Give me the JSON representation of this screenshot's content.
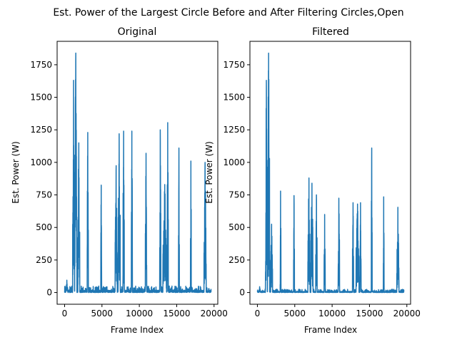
{
  "figure": {
    "suptitle": "Est. Power of the Largest Circle Before and After Filtering Circles,Open"
  },
  "chart_data": [
    {
      "type": "line",
      "title": "Original",
      "xlabel": "Frame Index",
      "ylabel": "Est. Power (W)",
      "xlim": [
        -1000,
        20500
      ],
      "ylim": [
        -90,
        1930
      ],
      "xticks": [
        0,
        5000,
        10000,
        15000,
        20000
      ],
      "xtick_labels": [
        "0",
        "5000",
        "10000",
        "15000",
        "20000"
      ],
      "yticks": [
        0,
        250,
        500,
        750,
        1000,
        1250,
        1500,
        1750
      ],
      "ytick_labels": [
        "0",
        "250",
        "500",
        "750",
        "1000",
        "1250",
        "1500",
        "1750"
      ],
      "grid": false,
      "series": [
        {
          "color": "#1f77b4",
          "baseline_range": [
            0,
            50
          ],
          "bursts": [
            {
              "x": 300,
              "peak": 95,
              "width": 250
            },
            {
              "x": 1200,
              "peak": 1630,
              "width": 250
            },
            {
              "x": 1500,
              "peak": 1840,
              "width": 300
            },
            {
              "x": 1900,
              "peak": 1150,
              "width": 250
            },
            {
              "x": 3100,
              "peak": 1230,
              "width": 150
            },
            {
              "x": 4900,
              "peak": 825,
              "width": 120
            },
            {
              "x": 6900,
              "peak": 975,
              "width": 300
            },
            {
              "x": 7300,
              "peak": 1220,
              "width": 300
            },
            {
              "x": 7900,
              "peak": 1240,
              "width": 200
            },
            {
              "x": 9000,
              "peak": 1240,
              "width": 150
            },
            {
              "x": 10900,
              "peak": 1070,
              "width": 200
            },
            {
              "x": 12800,
              "peak": 1250,
              "width": 150
            },
            {
              "x": 13400,
              "peak": 830,
              "width": 500
            },
            {
              "x": 13800,
              "peak": 1305,
              "width": 150
            },
            {
              "x": 15300,
              "peak": 1110,
              "width": 120
            },
            {
              "x": 16900,
              "peak": 1010,
              "width": 120
            },
            {
              "x": 18800,
              "peak": 1000,
              "width": 300
            }
          ]
        }
      ]
    },
    {
      "type": "line",
      "title": "Filtered",
      "xlabel": "Frame Index",
      "ylabel": "Est. Power (W)",
      "xlim": [
        -1000,
        20500
      ],
      "ylim": [
        -90,
        1930
      ],
      "xticks": [
        0,
        5000,
        10000,
        15000,
        20000
      ],
      "xtick_labels": [
        "0",
        "5000",
        "10000",
        "15000",
        "20000"
      ],
      "yticks": [
        0,
        250,
        500,
        750,
        1000,
        1250,
        1500,
        1750
      ],
      "ytick_labels": [
        "0",
        "250",
        "500",
        "750",
        "1000",
        "1250",
        "1500",
        "1750"
      ],
      "grid": false,
      "series": [
        {
          "color": "#1f77b4",
          "baseline_range": [
            0,
            25
          ],
          "bursts": [
            {
              "x": 300,
              "peak": 45,
              "width": 200
            },
            {
              "x": 1200,
              "peak": 1630,
              "width": 250
            },
            {
              "x": 1500,
              "peak": 1840,
              "width": 300
            },
            {
              "x": 1900,
              "peak": 525,
              "width": 250
            },
            {
              "x": 3100,
              "peak": 780,
              "width": 120
            },
            {
              "x": 4900,
              "peak": 745,
              "width": 120
            },
            {
              "x": 6900,
              "peak": 880,
              "width": 300
            },
            {
              "x": 7300,
              "peak": 840,
              "width": 300
            },
            {
              "x": 7900,
              "peak": 750,
              "width": 200
            },
            {
              "x": 9000,
              "peak": 600,
              "width": 150
            },
            {
              "x": 10900,
              "peak": 725,
              "width": 200
            },
            {
              "x": 12800,
              "peak": 690,
              "width": 150
            },
            {
              "x": 13400,
              "peak": 680,
              "width": 400
            },
            {
              "x": 13800,
              "peak": 690,
              "width": 150
            },
            {
              "x": 15300,
              "peak": 1110,
              "width": 120
            },
            {
              "x": 16900,
              "peak": 735,
              "width": 120
            },
            {
              "x": 18800,
              "peak": 655,
              "width": 300
            }
          ]
        }
      ]
    }
  ]
}
